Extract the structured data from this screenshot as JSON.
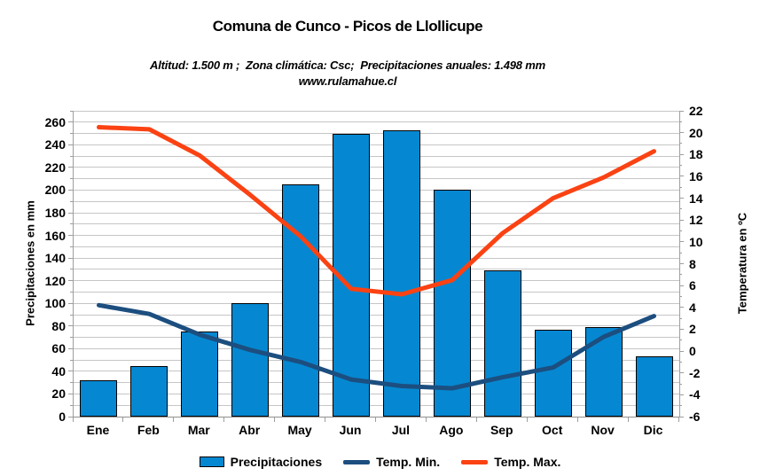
{
  "header": {
    "title": "Comuna de Cunco - Picos de Llollicupe",
    "subtitle": "Altitud: 1.500 m ;  Zona climática: Csc;  Precipitaciones anuales: 1.498 mm",
    "url": "www.rulamahue.cl"
  },
  "chart_data": {
    "type": "combo-bar-line",
    "categories": [
      "Ene",
      "Feb",
      "Mar",
      "Abr",
      "May",
      "Jun",
      "Jul",
      "Ago",
      "Sep",
      "Oct",
      "Nov",
      "Dic"
    ],
    "series": [
      {
        "name": "Precipitaciones",
        "type": "bar",
        "axis": "left",
        "color": "#0588D1",
        "values": [
          32,
          45,
          75,
          100,
          205,
          250,
          253,
          200,
          129,
          77,
          79,
          53
        ]
      },
      {
        "name": "Temp. Min.",
        "type": "line",
        "axis": "right",
        "color": "#1C4E7F",
        "values": [
          4.2,
          3.4,
          1.5,
          0.1,
          -1.0,
          -2.6,
          -3.2,
          -3.4,
          -2.4,
          -1.5,
          1.3,
          3.2
        ]
      },
      {
        "name": "Temp. Max.",
        "type": "line",
        "axis": "right",
        "color": "#FB4213",
        "values": [
          20.5,
          20.3,
          17.9,
          14.3,
          10.5,
          5.7,
          5.2,
          6.5,
          10.8,
          14.0,
          15.9,
          18.3
        ]
      }
    ],
    "left_axis": {
      "title": "Precipitaciones en mm",
      "min": 0,
      "max": 270,
      "label_step": 20,
      "grid_step": 10,
      "labels": [
        0,
        20,
        40,
        60,
        80,
        100,
        120,
        140,
        160,
        180,
        200,
        220,
        240,
        260
      ]
    },
    "right_axis": {
      "title": "Temperatura en ºC",
      "min": -6,
      "max": 22,
      "label_step": 2,
      "minor_step": 1,
      "labels": [
        -6,
        -4,
        -2,
        0,
        2,
        4,
        6,
        8,
        10,
        12,
        14,
        16,
        18,
        20,
        22
      ]
    },
    "grid": true,
    "legend_position": "bottom",
    "annual_precipitation_mm": 1498
  },
  "legend": {
    "items": [
      "Precipitaciones",
      "Temp. Min.",
      "Temp. Max."
    ]
  },
  "colors": {
    "background": "#FFFFFF",
    "grid": "#C6C6C6",
    "axis": "#9E9E9E",
    "text": "#000000"
  }
}
